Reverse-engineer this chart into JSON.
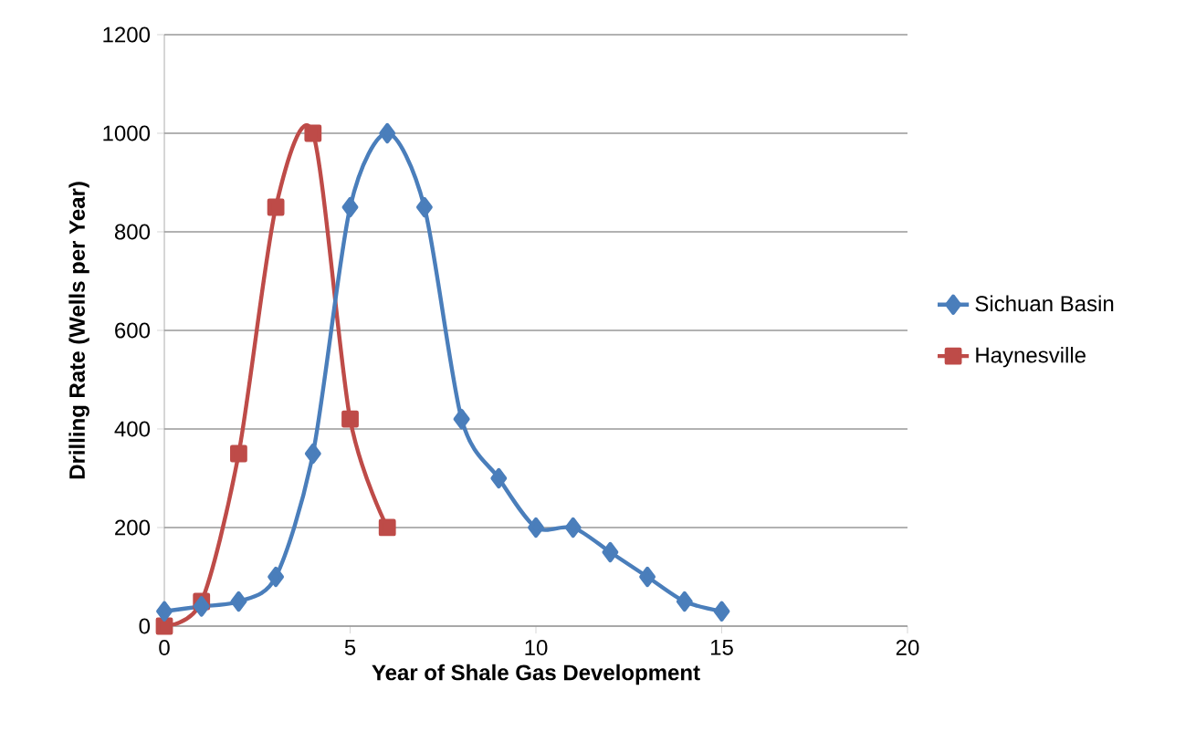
{
  "chart_data": {
    "type": "line",
    "xlabel": "Year of Shale Gas Development",
    "ylabel": "Drilling Rate (Wells per Year)",
    "xlim": [
      0,
      20
    ],
    "xticks": [
      0,
      5,
      10,
      15,
      20
    ],
    "ylim": [
      0,
      1200
    ],
    "yticks": [
      0,
      200,
      400,
      600,
      800,
      1000,
      1200
    ],
    "grid": "y",
    "legend": "right",
    "series": [
      {
        "name": "Sichuan Basin",
        "color": "#4a7ebb",
        "marker": "diamond",
        "x": [
          0,
          1,
          2,
          3,
          4,
          5,
          6,
          7,
          8,
          9,
          10,
          11,
          12,
          13,
          14,
          15
        ],
        "values": [
          30,
          40,
          50,
          100,
          350,
          850,
          1000,
          850,
          420,
          300,
          200,
          200,
          150,
          100,
          50,
          30
        ]
      },
      {
        "name": "Haynesville",
        "color": "#be4b48",
        "marker": "square",
        "x": [
          0,
          1,
          2,
          3,
          4,
          5,
          6
        ],
        "values": [
          0,
          50,
          350,
          850,
          1000,
          420,
          200
        ]
      }
    ]
  }
}
